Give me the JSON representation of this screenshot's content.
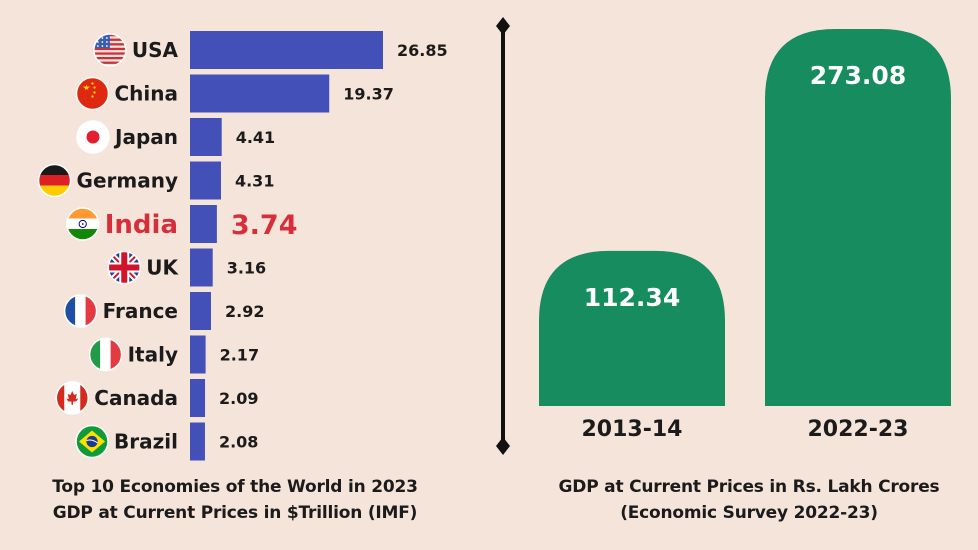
{
  "colors": {
    "background": "#f5e4da",
    "bar_left": "#4350b7",
    "bar_right": "#168c5f",
    "highlight": "#d62f3c",
    "text": "#1b1b1b",
    "divider": "#111111"
  },
  "chart_data": [
    {
      "type": "bar",
      "orientation": "horizontal",
      "title_lines": [
        "Top 10 Economies of the World in 2023",
        "GDP at Current Prices in $Trillion (IMF)"
      ],
      "unit": "$Trillion",
      "categories": [
        "USA",
        "China",
        "Japan",
        "Germany",
        "India",
        "UK",
        "France",
        "Italy",
        "Canada",
        "Brazil"
      ],
      "values": [
        26.85,
        19.37,
        4.41,
        4.31,
        3.74,
        3.16,
        2.92,
        2.17,
        2.09,
        2.08
      ],
      "value_labels": [
        "26.85",
        "19.37",
        "4.41",
        "4.31",
        "3.74",
        "3.16",
        "2.92",
        "2.17",
        "2.09",
        "2.08"
      ],
      "flag_icons": [
        "usa-flag-icon",
        "china-flag-icon",
        "japan-flag-icon",
        "germany-flag-icon",
        "india-flag-icon",
        "uk-flag-icon",
        "france-flag-icon",
        "italy-flag-icon",
        "canada-flag-icon",
        "brazil-flag-icon"
      ],
      "highlighted_category": "India",
      "xlim": [
        0,
        26.85
      ]
    },
    {
      "type": "bar",
      "orientation": "vertical",
      "title_lines": [
        "GDP at Current Prices in Rs. Lakh Crores",
        "(Economic Survey 2022-23)"
      ],
      "unit": "Rs. Lakh Crores",
      "categories": [
        "2013-14",
        "2022-23"
      ],
      "values": [
        112.34,
        273.08
      ],
      "value_labels": [
        "112.34",
        "273.08"
      ],
      "ylim": [
        0,
        273.08
      ]
    }
  ]
}
